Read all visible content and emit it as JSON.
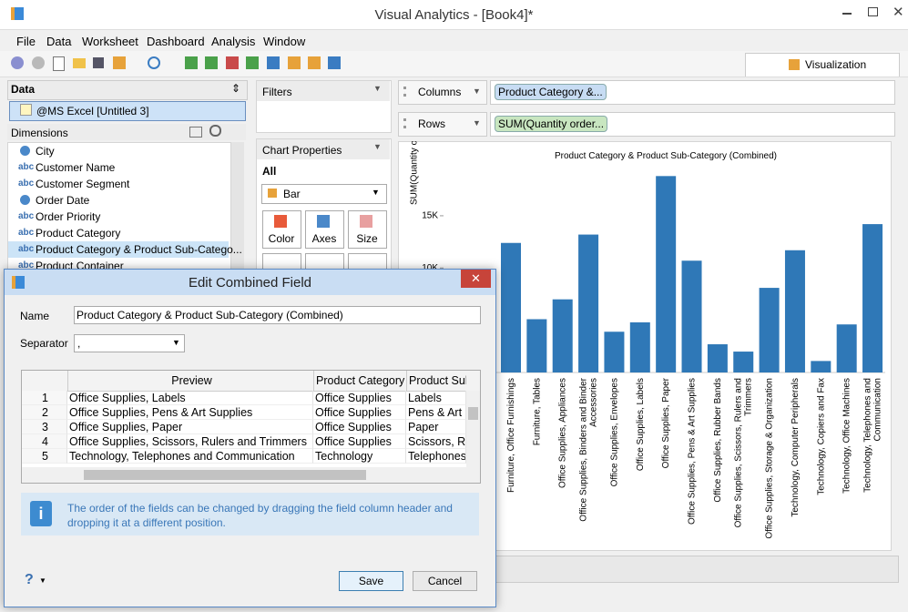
{
  "window": {
    "title": "Visual Analytics - [Book4]*"
  },
  "menu": [
    "File",
    "Data",
    "Worksheet",
    "Dashboard",
    "Analysis",
    "Window"
  ],
  "tab": "Visualization",
  "data_pane": {
    "title": "Data",
    "source": "@MS Excel [Untitled 3]",
    "dimensions_title": "Dimensions",
    "dimensions": [
      {
        "label": "City"
      },
      {
        "tag": "abc",
        "label": "Customer Name"
      },
      {
        "tag": "abc",
        "label": "Customer Segment"
      },
      {
        "label": "Order Date"
      },
      {
        "tag": "abc",
        "label": "Order Priority"
      },
      {
        "tag": "abc",
        "label": "Product Category"
      },
      {
        "tag": "abc",
        "label": "Product Category & Product Sub-Catego..."
      },
      {
        "tag": "abc",
        "label": "Product Container"
      }
    ]
  },
  "filters": {
    "title": "Filters"
  },
  "chart_properties": {
    "title": "Chart Properties",
    "scope": "All",
    "mark_type": "Bar",
    "buttons": [
      "Color",
      "Axes",
      "Size"
    ]
  },
  "shelves": [
    {
      "name": "Columns",
      "pill": "Product Category &..."
    },
    {
      "name": "Rows",
      "pill": "SUM(Quantity order..."
    }
  ],
  "chart": {
    "type": "bar",
    "title": "Product Category & Product Sub-Category (Combined)",
    "y_label": "SUM(Quantity ordered new)",
    "color": "#2f78b7",
    "categories": [
      "Furniture, Office Furnishings",
      "Furniture, Tables",
      "Office Supplies, Appliances",
      "Office Supplies, Binders and Binder Accessories",
      "Office Supplies, Envelopes",
      "Office Supplies, Labels",
      "Office Supplies, Paper",
      "Office Supplies, Pens & Art Supplies",
      "Office Supplies, Rubber Bands",
      "Office Supplies, Scissors, Rulers and Trimmers",
      "Office Supplies, Storage & Organization",
      "Technology, Computer Peripherals",
      "Technology, Copiers and Fax",
      "Technology, Office Machines",
      "Technology, Telephones and Communication"
    ],
    "values": [
      12400,
      5100,
      7000,
      13200,
      3900,
      4800,
      18800,
      10700,
      2700,
      2000,
      8100,
      11700,
      1100,
      4600,
      14200
    ],
    "ylim": [
      0,
      19700
    ],
    "yticks": [
      {
        "value": 10000,
        "label": "10K"
      },
      {
        "value": 15000,
        "label": "15K"
      }
    ]
  },
  "dialog": {
    "title": "Edit Combined Field",
    "name_label": "Name",
    "name_value": "Product Category & Product Sub-Category (Combined)",
    "separator_label": "Separator",
    "separator_value": ",",
    "columns": [
      "Preview",
      "Product Category",
      "Product Sub-Category"
    ],
    "rows": [
      [
        1,
        "Office Supplies, Labels",
        "Office Supplies",
        "Labels"
      ],
      [
        2,
        "Office Supplies, Pens & Art Supplies",
        "Office Supplies",
        "Pens & Art Supplies"
      ],
      [
        3,
        "Office Supplies, Paper",
        "Office Supplies",
        "Paper"
      ],
      [
        4,
        "Office Supplies, Scissors, Rulers and Trimmers",
        "Office Supplies",
        "Scissors, Rulers and Trimmers"
      ],
      [
        5,
        "Technology, Telephones and Communication",
        "Technology",
        "Telephones and Communication"
      ]
    ],
    "info": "The order of the fields can be changed by dragging the field column header and dropping it at a different position.",
    "help": "?",
    "buttons": [
      "Save",
      "Cancel"
    ]
  }
}
